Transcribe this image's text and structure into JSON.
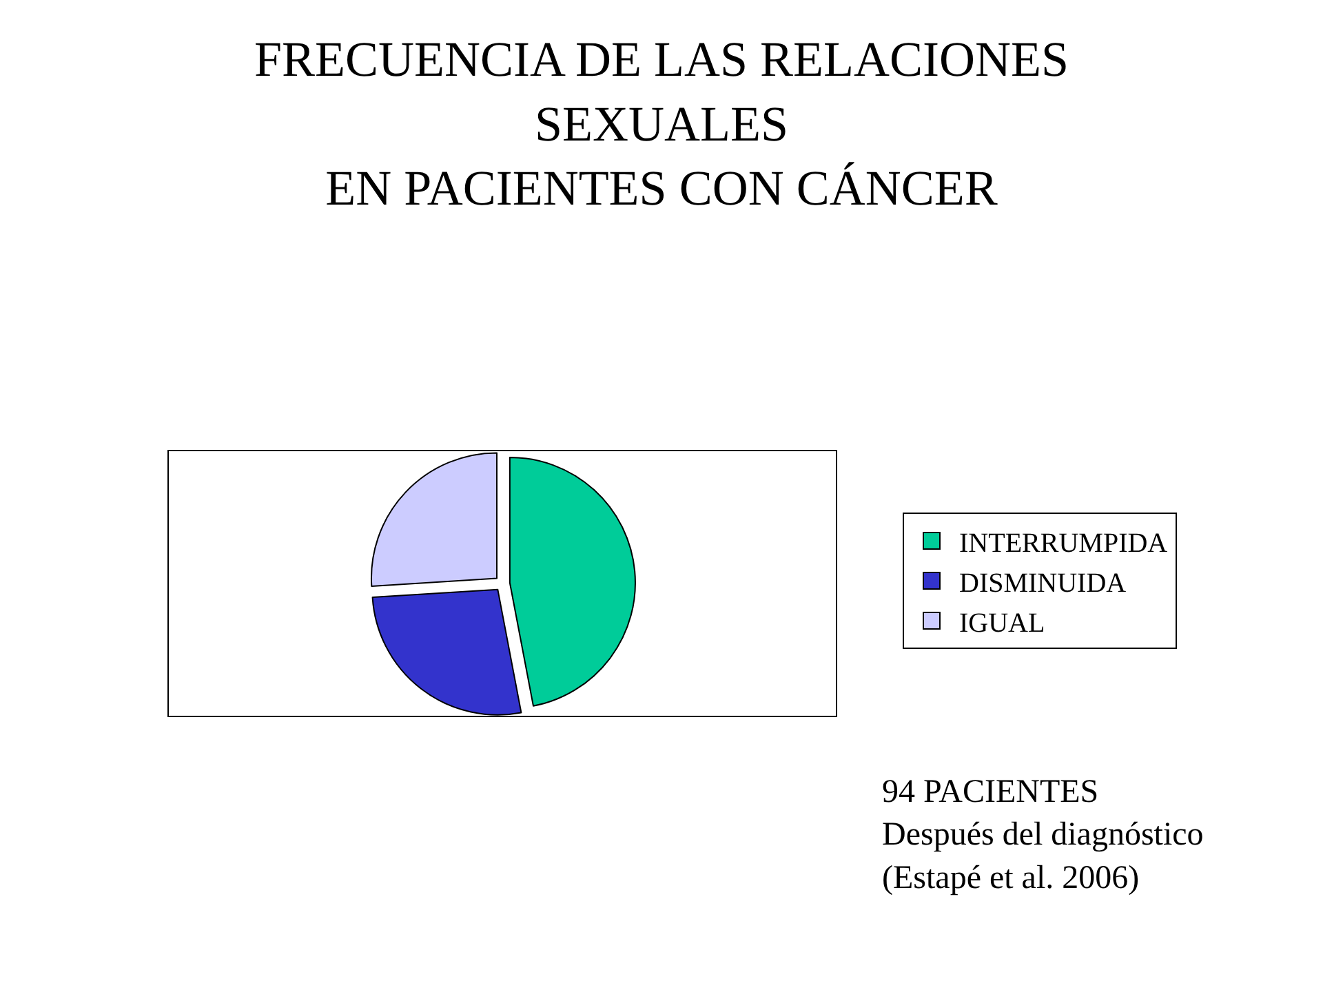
{
  "chart_data": {
    "type": "pie",
    "title": "FRECUENCIA DE LAS RELACIONES\nSEXUALES\nEN PACIENTES CON CÁNCER",
    "categories": [
      "INTERRUMPIDA",
      "DISMINUIDA",
      "IGUAL"
    ],
    "values": [
      47,
      27,
      26
    ],
    "colors": [
      "#00cc99",
      "#3333cc",
      "#ccccff"
    ],
    "legend": "right",
    "annotations": [
      "94 PACIENTES",
      "Después del diagnóstico",
      "(Estapé et al. 2006)"
    ]
  }
}
